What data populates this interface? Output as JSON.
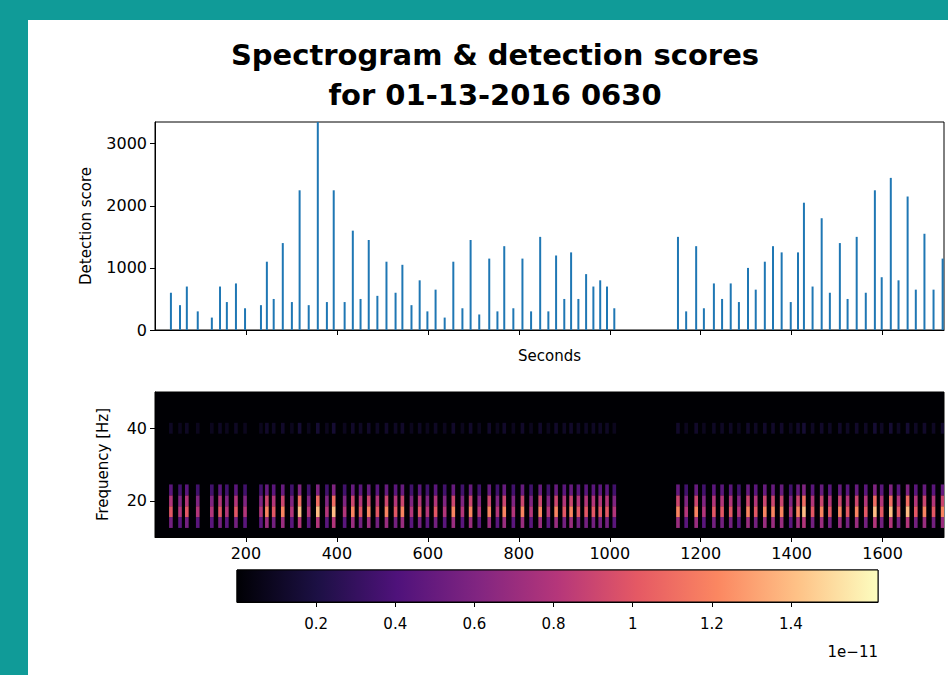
{
  "chart_data": [
    {
      "type": "bar",
      "title": "Spectrogram & detection scores\nfor 01-13-2016 0630",
      "x_label": "Seconds",
      "y_label": "Detection score",
      "x": [
        35,
        55,
        70,
        94,
        125,
        143,
        158,
        178,
        198,
        233,
        246,
        261,
        281,
        301,
        318,
        338,
        358,
        378,
        393,
        417,
        435,
        452,
        470,
        489,
        509,
        529,
        544,
        564,
        582,
        599,
        617,
        637,
        656,
        676,
        694,
        713,
        735,
        753,
        768,
        788,
        808,
        827,
        847,
        865,
        882,
        900,
        915,
        931,
        948,
        964,
        979,
        994,
        1010,
        1150,
        1168,
        1190,
        1207,
        1229,
        1247,
        1266,
        1284,
        1304,
        1321,
        1341,
        1359,
        1378,
        1398,
        1414,
        1427,
        1446,
        1466,
        1484,
        1506,
        1523,
        1543,
        1563,
        1583,
        1598,
        1618,
        1635,
        1655,
        1673,
        1692,
        1712,
        1732
      ],
      "values": [
        600,
        400,
        700,
        300,
        200,
        700,
        450,
        750,
        350,
        400,
        1100,
        500,
        1400,
        450,
        2250,
        400,
        3350,
        450,
        2250,
        450,
        1600,
        500,
        1450,
        550,
        1100,
        600,
        1050,
        400,
        800,
        300,
        650,
        200,
        1100,
        350,
        1450,
        250,
        1150,
        300,
        1350,
        350,
        1150,
        300,
        1500,
        300,
        1200,
        500,
        1250,
        500,
        900,
        700,
        800,
        700,
        350,
        1500,
        300,
        1350,
        350,
        750,
        500,
        750,
        450,
        1000,
        650,
        1100,
        1350,
        1250,
        450,
        1250,
        2050,
        700,
        1800,
        600,
        1400,
        500,
        1500,
        600,
        2250,
        850,
        2450,
        800,
        2150,
        650,
        1550,
        650,
        1150
      ],
      "color": "#1f77b4",
      "xlim": [
        0,
        1735
      ],
      "ylim": [
        0,
        3350
      ],
      "xticks": [
        200,
        400,
        600,
        800,
        1000,
        1200,
        1400,
        1600
      ],
      "yticks": [
        0,
        1000,
        2000,
        3000
      ],
      "tick_labels": "y",
      "grid": false
    },
    {
      "type": "heatmap",
      "y_label": "Frequency [Hz]",
      "xlim": [
        0,
        1735
      ],
      "ylim": [
        10,
        50
      ],
      "xticks": [
        200,
        400,
        600,
        800,
        1000,
        1200,
        1400,
        1600
      ],
      "yticks": [
        20,
        40
      ],
      "grid": false,
      "times": [
        35,
        55,
        70,
        94,
        125,
        143,
        158,
        178,
        198,
        233,
        246,
        261,
        281,
        301,
        318,
        338,
        358,
        378,
        393,
        417,
        435,
        452,
        470,
        489,
        509,
        529,
        544,
        564,
        582,
        599,
        617,
        637,
        656,
        676,
        694,
        713,
        735,
        753,
        768,
        788,
        808,
        827,
        847,
        865,
        882,
        900,
        915,
        931,
        948,
        964,
        979,
        994,
        1010,
        1150,
        1168,
        1190,
        1207,
        1229,
        1247,
        1266,
        1284,
        1304,
        1321,
        1341,
        1359,
        1378,
        1398,
        1414,
        1427,
        1446,
        1466,
        1484,
        1506,
        1523,
        1543,
        1563,
        1583,
        1598,
        1618,
        1635,
        1655,
        1673,
        1692,
        1712,
        1732
      ],
      "frequencies": [
        14,
        17,
        20,
        23,
        40
      ],
      "cell_size": [
        8,
        3
      ],
      "cells": [
        [
          0.55,
          1.0,
          0.8,
          0.45,
          0.1
        ],
        [
          0.45,
          0.8,
          0.6,
          0.35,
          0.08
        ],
        [
          0.55,
          1.0,
          0.8,
          0.45,
          0.1
        ],
        [
          0.45,
          0.8,
          0.6,
          0.35,
          0.08
        ],
        [
          0.45,
          0.8,
          0.6,
          0.35,
          0.08
        ],
        [
          0.55,
          1.0,
          0.8,
          0.45,
          0.1
        ],
        [
          0.45,
          0.8,
          0.6,
          0.35,
          0.08
        ],
        [
          0.55,
          1.0,
          0.8,
          0.45,
          0.1
        ],
        [
          0.45,
          0.8,
          0.6,
          0.35,
          0.08
        ],
        [
          0.45,
          0.8,
          0.6,
          0.35,
          0.08
        ],
        [
          0.7,
          1.2,
          0.9,
          0.5,
          0.12
        ],
        [
          0.55,
          1.0,
          0.8,
          0.45,
          0.1
        ],
        [
          0.7,
          1.2,
          0.9,
          0.5,
          0.12
        ],
        [
          0.45,
          0.8,
          0.6,
          0.35,
          0.08
        ],
        [
          0.8,
          1.4,
          1.1,
          0.6,
          0.15
        ],
        [
          0.45,
          0.8,
          0.6,
          0.35,
          0.08
        ],
        [
          0.8,
          1.4,
          1.1,
          0.6,
          0.15
        ],
        [
          0.45,
          0.8,
          0.6,
          0.35,
          0.08
        ],
        [
          0.8,
          1.4,
          1.1,
          0.6,
          0.15
        ],
        [
          0.45,
          0.8,
          0.6,
          0.35,
          0.08
        ],
        [
          0.7,
          1.2,
          0.9,
          0.5,
          0.12
        ],
        [
          0.55,
          1.0,
          0.8,
          0.45,
          0.1
        ],
        [
          0.7,
          1.2,
          0.9,
          0.5,
          0.12
        ],
        [
          0.55,
          1.0,
          0.8,
          0.45,
          0.1
        ],
        [
          0.7,
          1.2,
          0.9,
          0.5,
          0.12
        ],
        [
          0.55,
          1.0,
          0.8,
          0.45,
          0.1
        ],
        [
          0.7,
          1.2,
          0.9,
          0.5,
          0.12
        ],
        [
          0.45,
          0.8,
          0.6,
          0.35,
          0.08
        ],
        [
          0.55,
          1.0,
          0.8,
          0.45,
          0.1
        ],
        [
          0.45,
          0.8,
          0.6,
          0.35,
          0.08
        ],
        [
          0.55,
          1.0,
          0.8,
          0.45,
          0.1
        ],
        [
          0.45,
          0.8,
          0.6,
          0.35,
          0.08
        ],
        [
          0.7,
          1.2,
          0.9,
          0.5,
          0.12
        ],
        [
          0.45,
          0.8,
          0.6,
          0.35,
          0.08
        ],
        [
          0.7,
          1.2,
          0.9,
          0.5,
          0.12
        ],
        [
          0.45,
          0.8,
          0.6,
          0.35,
          0.08
        ],
        [
          0.7,
          1.2,
          0.9,
          0.5,
          0.12
        ],
        [
          0.45,
          0.8,
          0.6,
          0.35,
          0.08
        ],
        [
          0.7,
          1.2,
          0.9,
          0.5,
          0.12
        ],
        [
          0.45,
          0.8,
          0.6,
          0.35,
          0.08
        ],
        [
          0.7,
          1.2,
          0.9,
          0.5,
          0.12
        ],
        [
          0.45,
          0.8,
          0.6,
          0.35,
          0.08
        ],
        [
          0.7,
          1.2,
          0.9,
          0.5,
          0.12
        ],
        [
          0.45,
          0.8,
          0.6,
          0.35,
          0.08
        ],
        [
          0.7,
          1.2,
          0.9,
          0.5,
          0.12
        ],
        [
          0.55,
          1.0,
          0.8,
          0.45,
          0.1
        ],
        [
          0.7,
          1.2,
          0.9,
          0.5,
          0.12
        ],
        [
          0.55,
          1.0,
          0.8,
          0.45,
          0.1
        ],
        [
          0.55,
          1.0,
          0.8,
          0.45,
          0.1
        ],
        [
          0.55,
          1.0,
          0.8,
          0.45,
          0.1
        ],
        [
          0.55,
          1.0,
          0.8,
          0.45,
          0.1
        ],
        [
          0.55,
          1.0,
          0.8,
          0.45,
          0.1
        ],
        [
          0.45,
          0.8,
          0.6,
          0.35,
          0.08
        ],
        [
          0.7,
          1.2,
          0.9,
          0.5,
          0.12
        ],
        [
          0.45,
          0.8,
          0.6,
          0.35,
          0.08
        ],
        [
          0.7,
          1.2,
          0.9,
          0.5,
          0.12
        ],
        [
          0.45,
          0.8,
          0.6,
          0.35,
          0.08
        ],
        [
          0.55,
          1.0,
          0.8,
          0.45,
          0.1
        ],
        [
          0.55,
          1.0,
          0.8,
          0.45,
          0.1
        ],
        [
          0.55,
          1.0,
          0.8,
          0.45,
          0.1
        ],
        [
          0.45,
          0.8,
          0.6,
          0.35,
          0.08
        ],
        [
          0.7,
          1.2,
          0.9,
          0.5,
          0.12
        ],
        [
          0.55,
          1.0,
          0.8,
          0.45,
          0.1
        ],
        [
          0.7,
          1.2,
          0.9,
          0.5,
          0.12
        ],
        [
          0.7,
          1.2,
          0.9,
          0.5,
          0.12
        ],
        [
          0.7,
          1.2,
          0.9,
          0.5,
          0.12
        ],
        [
          0.45,
          0.8,
          0.6,
          0.35,
          0.08
        ],
        [
          0.7,
          1.2,
          0.9,
          0.5,
          0.12
        ],
        [
          0.8,
          1.4,
          1.1,
          0.6,
          0.15
        ],
        [
          0.55,
          1.0,
          0.8,
          0.45,
          0.1
        ],
        [
          0.7,
          1.2,
          0.9,
          0.5,
          0.12
        ],
        [
          0.55,
          1.0,
          0.8,
          0.45,
          0.1
        ],
        [
          0.7,
          1.2,
          0.9,
          0.5,
          0.12
        ],
        [
          0.55,
          1.0,
          0.8,
          0.45,
          0.1
        ],
        [
          0.7,
          1.2,
          0.9,
          0.5,
          0.12
        ],
        [
          0.55,
          1.0,
          0.8,
          0.45,
          0.1
        ],
        [
          0.8,
          1.4,
          1.1,
          0.6,
          0.15
        ],
        [
          0.55,
          1.0,
          0.8,
          0.45,
          0.1
        ],
        [
          0.8,
          1.4,
          1.1,
          0.6,
          0.15
        ],
        [
          0.55,
          1.0,
          0.8,
          0.45,
          0.1
        ],
        [
          0.8,
          1.4,
          1.1,
          0.6,
          0.15
        ],
        [
          0.55,
          1.0,
          0.8,
          0.45,
          0.1
        ],
        [
          0.7,
          1.2,
          0.9,
          0.5,
          0.12
        ],
        [
          0.55,
          1.0,
          0.8,
          0.45,
          0.1
        ],
        [
          0.7,
          1.2,
          0.9,
          0.5,
          0.12
        ]
      ],
      "colorbar": {
        "range": [
          0,
          1.62
        ],
        "ticks": [
          0.2,
          0.4,
          0.6,
          0.8,
          1.0,
          1.2,
          1.4
        ],
        "scale_label": "1e−11"
      }
    }
  ]
}
